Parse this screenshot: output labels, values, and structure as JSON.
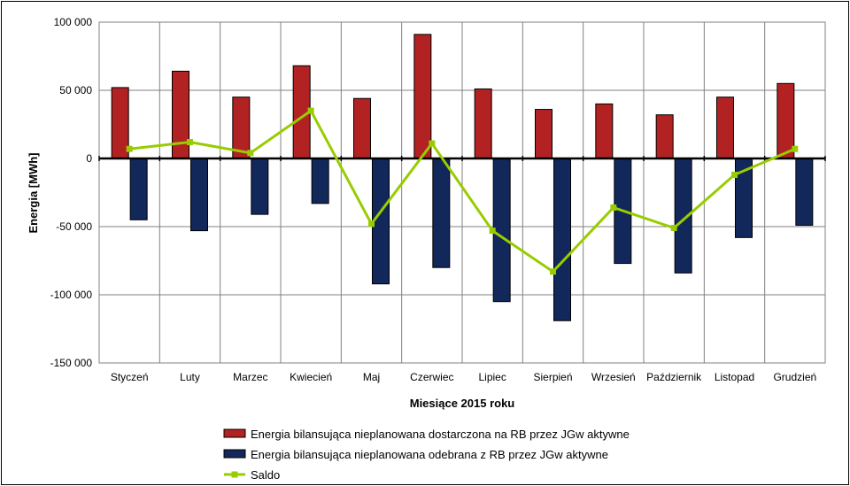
{
  "chart_data": {
    "type": "bar",
    "categories": [
      "Styczeń",
      "Luty",
      "Marzec",
      "Kwiecień",
      "Maj",
      "Czerwiec",
      "Lipiec",
      "Sierpień",
      "Wrzesień",
      "Październik",
      "Listopad",
      "Grudzień"
    ],
    "series": [
      {
        "name": "Energia bilansująca nieplanowana dostarczona na RB przez JGw aktywne",
        "kind": "bar",
        "color": "#b22222",
        "values": [
          52000,
          64000,
          45000,
          68000,
          44000,
          91000,
          51000,
          36000,
          40000,
          32000,
          45000,
          55000
        ]
      },
      {
        "name": "Energia bilansująca nieplanowana odebrana z RB przez JGw aktywne",
        "kind": "bar",
        "color": "#12285a",
        "values": [
          -45000,
          -53000,
          -41000,
          -33000,
          -92000,
          -80000,
          -105000,
          -119000,
          -77000,
          -84000,
          -58000,
          -49000
        ]
      },
      {
        "name": "Saldo",
        "kind": "line",
        "color": "#99cc00",
        "values": [
          7000,
          12000,
          4000,
          35000,
          -48000,
          11000,
          -53000,
          -83000,
          -36000,
          -51000,
          -12000,
          7000
        ]
      }
    ],
    "yticks": [
      "100 000",
      "50 000",
      "0",
      "-50 000",
      "-100 000",
      "-150 000"
    ],
    "ytick_values": [
      100000,
      50000,
      0,
      -50000,
      -100000,
      -150000
    ],
    "ylim": [
      -150000,
      100000
    ],
    "xlabel": "Miesiące 2015  roku",
    "ylabel": "Energia  [MWh]",
    "grid": true,
    "legend_position": "bottom"
  }
}
